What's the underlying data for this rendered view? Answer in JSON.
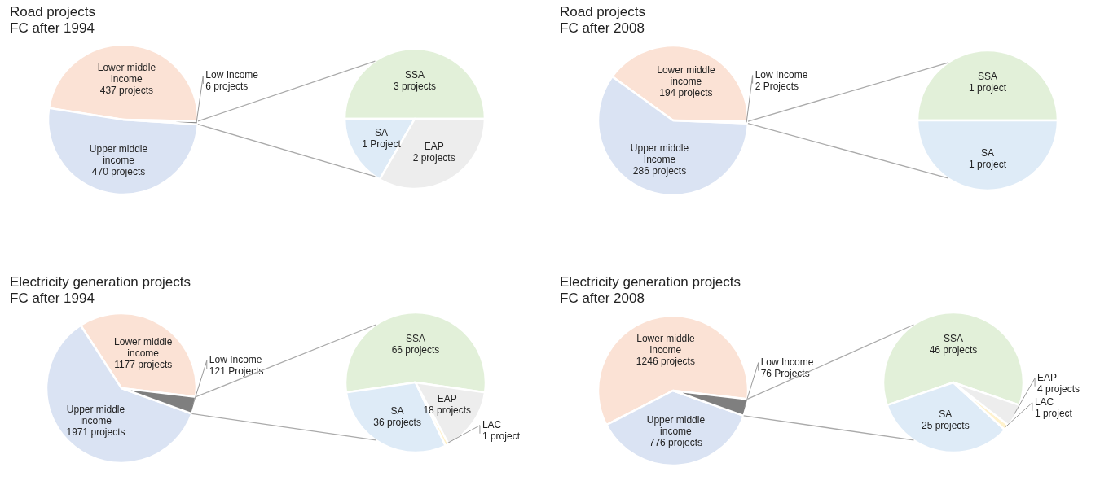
{
  "chart_data": [
    {
      "type": "pie",
      "title": "Road projects",
      "subtitle": "FC after 1994",
      "categories": [
        "Lower middle income",
        "Upper middle income",
        "Low Income"
      ],
      "values": [
        437,
        470,
        6
      ],
      "value_labels": [
        "437 projects",
        "470 projects",
        "6 projects"
      ],
      "colors": [
        "#fbe2d5",
        "#dae3f3",
        "#7f7f7f"
      ]
    },
    {
      "type": "pie",
      "categories": [
        "SSA",
        "SA",
        "EAP"
      ],
      "values": [
        3,
        1,
        2
      ],
      "value_labels": [
        "3 projects",
        "1 Project",
        "2 projects"
      ],
      "colors": [
        "#e2f0d9",
        "#deebf7",
        "#ededed"
      ]
    },
    {
      "type": "pie",
      "title": "Road projects",
      "subtitle": "FC after 2008",
      "categories": [
        "Lower middle income",
        "Upper middle Income",
        "Low Income"
      ],
      "values": [
        194,
        286,
        2
      ],
      "value_labels": [
        "194 projects",
        "286 projects",
        "2 Projects"
      ],
      "colors": [
        "#fbe2d5",
        "#dae3f3",
        "#7f7f7f"
      ]
    },
    {
      "type": "pie",
      "categories": [
        "SSA",
        "SA"
      ],
      "values": [
        1,
        1
      ],
      "value_labels": [
        "1 project",
        "1 project"
      ],
      "colors": [
        "#e2f0d9",
        "#deebf7"
      ]
    },
    {
      "type": "pie",
      "title": "Electricity generation projects",
      "subtitle": "FC after 1994",
      "categories": [
        "Lower middle income",
        "Upper middle income",
        "Low Income"
      ],
      "values": [
        1177,
        1971,
        121
      ],
      "value_labels": [
        "1177 projects",
        "1971 projects",
        "121 Projects"
      ],
      "colors": [
        "#fbe2d5",
        "#dae3f3",
        "#7f7f7f"
      ]
    },
    {
      "type": "pie",
      "categories": [
        "SSA",
        "SA",
        "LAC",
        "EAP"
      ],
      "values": [
        66,
        36,
        1,
        18
      ],
      "value_labels": [
        "66 projects",
        "36 projects",
        "1 project",
        "18 projects"
      ],
      "colors": [
        "#e2f0d9",
        "#deebf7",
        "#fff2cc",
        "#ededed"
      ]
    },
    {
      "type": "pie",
      "title": "Electricity generation projects",
      "subtitle": "FC after 2008",
      "categories": [
        "Lower middle income",
        "Upper middle income",
        "Low Income"
      ],
      "values": [
        1246,
        776,
        76
      ],
      "value_labels": [
        "1246 projects",
        "776 projects",
        "76 Projects"
      ],
      "colors": [
        "#fbe2d5",
        "#dae3f3",
        "#7f7f7f"
      ]
    },
    {
      "type": "pie",
      "categories": [
        "SSA",
        "SA",
        "LAC",
        "EAP"
      ],
      "values": [
        46,
        25,
        1,
        4
      ],
      "value_labels": [
        "46 projects",
        "25 projects",
        "1 project",
        "4 projects"
      ],
      "colors": [
        "#e2f0d9",
        "#deebf7",
        "#fff2cc",
        "#ededed"
      ]
    }
  ]
}
